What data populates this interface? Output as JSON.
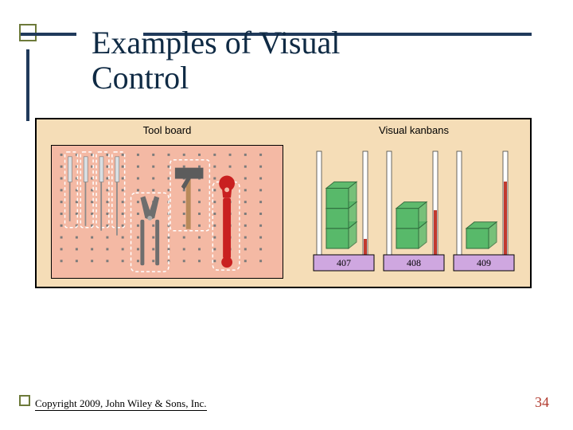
{
  "accent_color": "#203a5b",
  "olive_color": "#6d7a3a",
  "title": "Examples of Visual\nControl",
  "title_color": "#0f2a44",
  "figure": {
    "background": "#f5ddb7",
    "panels": {
      "left_label": "Tool board",
      "right_label": "Visual kanbans"
    },
    "toolboard": {
      "bg": "#f4b9a4",
      "dot_color": "#7b7b7b",
      "dot_rows": 10,
      "dot_cols": 14,
      "outline_color": "#ffffff",
      "tools": {
        "screwdriver_handle": "#d9dfe3",
        "screwdriver_shaft": "#8a8a8a",
        "pliers": "#6e6e6e",
        "hammer_head": "#5c5c5c",
        "hammer_handle": "#b98a5a",
        "wrench": "#c92020"
      }
    },
    "kanban": {
      "post_color": "#ffffff",
      "post_border": "#444444",
      "cube_fill": "#58b96a",
      "cube_stroke": "#2f6b3c",
      "indicator_red": "#c23a2e",
      "base_fill": "#cfa7e0",
      "base_stroke": "#000000",
      "labels": [
        "407",
        "408",
        "409"
      ],
      "stacks": [
        3,
        2,
        1
      ]
    }
  },
  "footer": {
    "copyright": "Copyright 2009, John Wiley & Sons, Inc.",
    "page": "34",
    "page_color": "#b13a2e"
  }
}
